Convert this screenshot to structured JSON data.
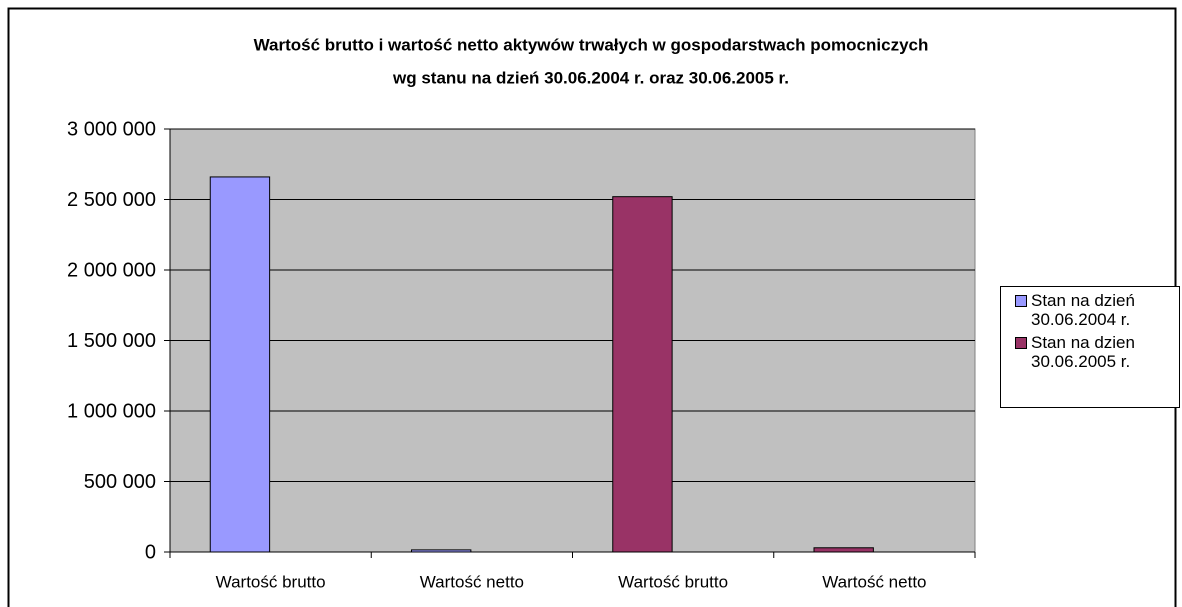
{
  "chart_data": {
    "type": "bar",
    "title": [
      "Wartość brutto i wartość netto aktywów trwałych w gospodarstwach pomocniczych",
      "wg stanu na dzień 30.06.2004 r. oraz 30.06.2005 r."
    ],
    "categories": [
      "Wartość brutto",
      "Wartość netto",
      "Wartość brutto",
      "Wartość netto"
    ],
    "series": [
      {
        "name": "Stan na dzień 30.06.2004 r.",
        "color": "#9999ff",
        "values": [
          2660000,
          15000,
          null,
          null
        ]
      },
      {
        "name": "Stan na dzien 30.06.2005 r.",
        "color": "#993366",
        "values": [
          null,
          null,
          2520000,
          30000
        ]
      }
    ],
    "ylim": [
      0,
      3000000
    ],
    "yticks": [
      0,
      {
        "value": 500000,
        "label": "500 000"
      },
      {
        "value": 1000000,
        "label": "1 000 000"
      },
      {
        "value": 1500000,
        "label": "1 500 000"
      },
      {
        "value": 2000000,
        "label": "2 000 000"
      },
      {
        "value": 2500000,
        "label": "2 500 000"
      },
      {
        "value": 3000000,
        "label": "3 000 000"
      }
    ],
    "grid": true,
    "legend": "right",
    "plot_background": "#c0c0c0"
  }
}
